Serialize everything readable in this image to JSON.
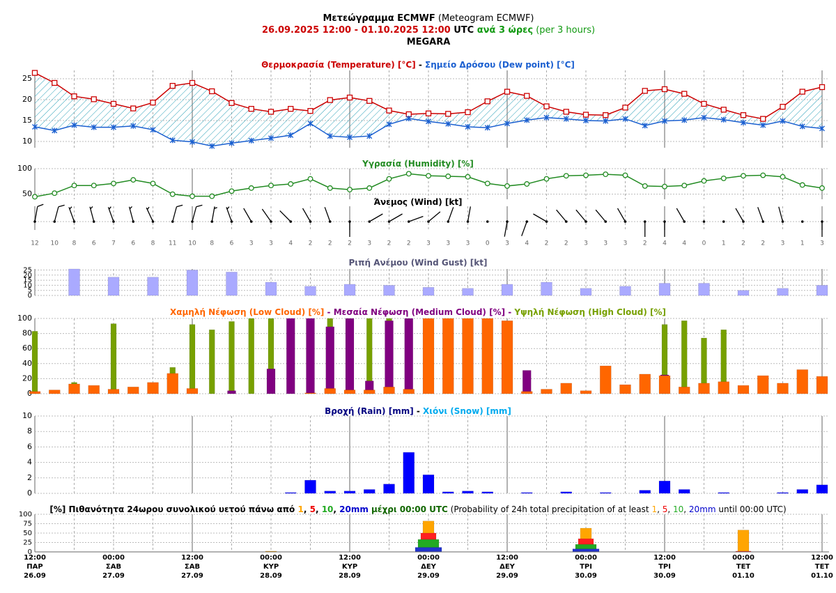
{
  "title_lines": [
    [
      {
        "text": "Μετεώγραμμα ECMWF",
        "bold": true
      },
      {
        "text": " (Meteogram ECMWF)"
      }
    ],
    [
      {
        "text": "26.09.2025 12:00",
        "bold": true,
        "color": "#cc0000"
      },
      {
        "text": " - ",
        "bold": true,
        "color": "#cc0000"
      },
      {
        "text": "01.10.2025 12:00",
        "bold": true,
        "color": "#cc0000"
      },
      {
        "text": " UTC",
        "bold": true
      },
      {
        "text": " ανά 3 ώρες",
        "bold": true,
        "color": "#119911"
      },
      {
        "text": " (per 3 hours)",
        "color": "#119911"
      }
    ],
    [
      {
        "text": "MEGARA",
        "bold": true
      }
    ]
  ],
  "x_labels": [
    {
      "time": "12:00",
      "day": "ΠΑΡ",
      "date": "26.09"
    },
    {
      "time": "00:00",
      "day": "ΣΑΒ",
      "date": "27.09"
    },
    {
      "time": "12:00",
      "day": "ΣΑΒ",
      "date": "27.09"
    },
    {
      "time": "00:00",
      "day": "ΚΥΡ",
      "date": "28.09"
    },
    {
      "time": "12:00",
      "day": "ΚΥΡ",
      "date": "28.09"
    },
    {
      "time": "00:00",
      "day": "ΔΕΥ",
      "date": "29.09"
    },
    {
      "time": "12:00",
      "day": "ΔΕΥ",
      "date": "29.09"
    },
    {
      "time": "00:00",
      "day": "ΤΡΙ",
      "date": "30.09"
    },
    {
      "time": "12:00",
      "day": "ΤΡΙ",
      "date": "30.09"
    },
    {
      "time": "00:00",
      "day": "ΤΕΤ",
      "date": "01.10"
    },
    {
      "time": "12:00",
      "day": "ΤΕΤ",
      "date": "01.10"
    }
  ],
  "chart_data": [
    {
      "type": "line",
      "title_parts": [
        {
          "text": "Θερμοκρασία (Temperature) [°C]",
          "bold": true,
          "color": "#cc0000"
        },
        {
          "text": " - ",
          "bold": true
        },
        {
          "text": "Σημείο Δρόσου (Dew point) [°C]",
          "bold": true,
          "color": "#1a5fd0"
        }
      ],
      "ylim": [
        8.5,
        27
      ],
      "yticks": [
        10,
        15,
        20,
        25
      ],
      "fill_between": true,
      "fill_color": "#2aa0b8",
      "series": [
        {
          "color": "#cc0000",
          "marker": "square",
          "values": [
            26.4,
            24.0,
            20.8,
            20.1,
            19.0,
            17.9,
            19.3,
            23.3,
            24.0,
            22.0,
            19.2,
            17.8,
            17.1,
            17.8,
            17.3,
            19.9,
            20.5,
            19.7,
            17.4,
            16.5,
            16.7,
            16.6,
            17.0,
            19.6,
            21.9,
            20.9,
            18.4,
            17.1,
            16.4,
            16.3,
            18.1,
            22.1,
            22.5,
            21.4,
            19.0,
            17.6,
            16.3,
            15.4,
            18.3,
            21.9,
            23.0
          ]
        },
        {
          "color": "#1a5fd0",
          "marker": "asterisk",
          "values": [
            13.5,
            12.6,
            13.9,
            13.4,
            13.4,
            13.7,
            12.8,
            10.3,
            9.9,
            8.9,
            9.6,
            10.2,
            10.8,
            11.5,
            14.3,
            11.3,
            11.0,
            11.3,
            14.1,
            15.5,
            14.8,
            14.2,
            13.5,
            13.3,
            14.3,
            15.1,
            15.7,
            15.4,
            15.0,
            14.9,
            15.4,
            13.8,
            14.9,
            15.1,
            15.7,
            15.2,
            14.5,
            13.9,
            14.9,
            13.6,
            13.1
          ]
        }
      ]
    },
    {
      "type": "line",
      "title_parts": [
        {
          "text": "Υγρασία (Humidity) [%]",
          "bold": true,
          "color": "#228b22"
        }
      ],
      "ylim": [
        40,
        100
      ],
      "yticks": [
        50,
        100
      ],
      "series": [
        {
          "color": "#228b22",
          "marker": "circle",
          "values": [
            45,
            52,
            67,
            67,
            71,
            78,
            71,
            50,
            46,
            46,
            56,
            62,
            67,
            70,
            80,
            62,
            59,
            62,
            80,
            90,
            86,
            85,
            84,
            71,
            66,
            70,
            80,
            86,
            87,
            89,
            87,
            66,
            65,
            67,
            76,
            81,
            86,
            87,
            84,
            68,
            62
          ]
        }
      ]
    },
    {
      "type": "wind_barb",
      "title_parts": [
        {
          "text": "Άνεμος (Wind) [kt]",
          "bold": true
        }
      ],
      "values": [
        12,
        10,
        8,
        6,
        7,
        6,
        8,
        11,
        10,
        8,
        6,
        3,
        3,
        4,
        2,
        2,
        2,
        3,
        2,
        2,
        3,
        3,
        3,
        0,
        3,
        4,
        2,
        2,
        3,
        3,
        3,
        2,
        4,
        4,
        0,
        1,
        2,
        2,
        3,
        1,
        3
      ],
      "directions": [
        10,
        15,
        340,
        345,
        340,
        345,
        335,
        15,
        15,
        10,
        340,
        330,
        325,
        315,
        330,
        340,
        180,
        60,
        60,
        70,
        50,
        20,
        10,
        null,
        190,
        200,
        300,
        320,
        320,
        320,
        330,
        180,
        180,
        330,
        null,
        340,
        330,
        340,
        345,
        340,
        180
      ]
    },
    {
      "type": "bar",
      "title_parts": [
        {
          "text": "Ριπή Ανέμου (Wind Gust) [kt]",
          "bold": true,
          "color": "#555577"
        }
      ],
      "ylim": [
        0,
        26
      ],
      "yticks": [
        0,
        5,
        10,
        15,
        20,
        25
      ],
      "series": [
        {
          "color": "#aaaaff",
          "values": [
            null,
            null,
            26,
            null,
            18,
            null,
            18,
            null,
            25,
            null,
            23,
            null,
            13,
            null,
            9,
            null,
            11,
            null,
            10,
            null,
            8,
            null,
            7,
            null,
            11,
            null,
            13,
            null,
            7,
            null,
            9,
            null,
            12,
            null,
            12,
            null,
            5,
            null,
            7,
            null,
            10
          ]
        }
      ]
    },
    {
      "type": "bar",
      "title_parts": [
        {
          "text": "Χαμηλή Νέφωση (Low Cloud) [%]",
          "bold": true,
          "color": "#ff6600"
        },
        {
          "text": " - ",
          "bold": true,
          "color": "#800080"
        },
        {
          "text": "Μεσαία Νέφωση (Medium Cloud) [%]",
          "bold": true,
          "color": "#800080"
        },
        {
          "text": " - ",
          "bold": true,
          "color": "#800080"
        },
        {
          "text": "Υψηλή Νέφωση (High Cloud) [%]",
          "bold": true,
          "color": "#77a000"
        }
      ],
      "ylim": [
        0,
        100
      ],
      "yticks": [
        0,
        20,
        40,
        60,
        80,
        100
      ],
      "series": [
        {
          "color": "#ff6600",
          "values": [
            3,
            5,
            13,
            11,
            6,
            9,
            15,
            27,
            7,
            0,
            0,
            0,
            0,
            0,
            1,
            7,
            5,
            5,
            9,
            6,
            100,
            100,
            100,
            100,
            97,
            3,
            6,
            14,
            4,
            37,
            12,
            26,
            24,
            9,
            14,
            16,
            11,
            24,
            14,
            32,
            23
          ]
        },
        {
          "color": "#800080",
          "values": [
            0,
            0,
            0,
            0,
            0,
            0,
            0,
            0,
            0,
            0,
            4,
            0,
            33,
            100,
            100,
            89,
            100,
            17,
            97,
            100,
            0,
            0,
            0,
            0,
            0,
            31,
            0,
            0,
            3,
            0,
            0,
            0,
            25,
            0,
            0,
            0,
            0,
            0,
            0,
            0,
            0
          ]
        },
        {
          "color": "#77a000",
          "values": [
            83,
            0,
            15,
            0,
            93,
            0,
            0,
            35,
            92,
            85,
            96,
            100,
            100,
            0,
            0,
            100,
            0,
            100,
            100,
            0,
            0,
            0,
            0,
            0,
            0,
            0,
            0,
            0,
            0,
            0,
            0,
            0,
            92,
            97,
            74,
            85,
            0,
            0,
            0,
            0,
            0
          ]
        }
      ]
    },
    {
      "type": "bar",
      "title_parts": [
        {
          "text": "Βροχή (Rain) [mm]",
          "bold": true,
          "color": "#000080"
        },
        {
          "text": " - ",
          "bold": true
        },
        {
          "text": "Χιόνι (Snow) [mm]",
          "bold": true,
          "color": "#00aaee"
        }
      ],
      "ylim": [
        0,
        10
      ],
      "yticks": [
        0,
        2,
        4,
        6,
        8,
        10
      ],
      "series": [
        {
          "color": "#0000ff",
          "values": [
            0,
            0,
            0,
            0,
            0,
            0,
            0,
            0,
            0,
            0,
            0,
            0,
            0,
            0.1,
            1.7,
            0.3,
            0.3,
            0.5,
            1.2,
            5.3,
            2.4,
            0.2,
            0.3,
            0.2,
            0,
            0.1,
            0,
            0.2,
            0,
            0.1,
            0,
            0.4,
            1.6,
            0.5,
            0,
            0.1,
            0,
            0,
            0.1,
            0.5,
            1.1
          ]
        }
      ]
    },
    {
      "type": "bar",
      "title_parts": [
        {
          "text": "[%] Πιθανότητα 24ωρου συνολικού υετού πάνω από ",
          "bold": true
        },
        {
          "text": "1",
          "bold": true,
          "color": "#ffa500"
        },
        {
          "text": ", ",
          "bold": true
        },
        {
          "text": "5",
          "bold": true,
          "color": "#ee0000"
        },
        {
          "text": ", ",
          "bold": true
        },
        {
          "text": "10",
          "bold": true,
          "color": "#22aa22"
        },
        {
          "text": ", ",
          "bold": true
        },
        {
          "text": "20mm",
          "bold": true,
          "color": "#0000cc"
        },
        {
          "text": " μέχρι 00:00 UTC",
          "bold": true,
          "color": "#116600"
        },
        {
          "text": " (Probability of 24h total precipitation of at least "
        },
        {
          "text": "1",
          "color": "#ffa500"
        },
        {
          "text": ", "
        },
        {
          "text": "5",
          "color": "#ee0000"
        },
        {
          "text": ", "
        },
        {
          "text": "10",
          "color": "#22aa22"
        },
        {
          "text": ", "
        },
        {
          "text": "20mm",
          "color": "#0000cc"
        },
        {
          "text": " until 00:00 UTC)"
        }
      ],
      "ylim": [
        0,
        100
      ],
      "yticks": [
        0,
        25,
        50,
        75,
        100
      ],
      "series": [
        {
          "color": "#ffa500",
          "values": [
            null,
            null,
            null,
            null,
            null,
            null,
            null,
            null,
            null,
            null,
            null,
            null,
            2,
            null,
            null,
            null,
            null,
            null,
            null,
            null,
            82,
            null,
            null,
            null,
            null,
            null,
            null,
            null,
            63,
            null,
            null,
            null,
            null,
            null,
            null,
            null,
            58,
            null,
            null,
            null,
            null
          ]
        },
        {
          "color": "#ff2020",
          "values": [
            null,
            null,
            null,
            null,
            null,
            null,
            null,
            null,
            null,
            null,
            null,
            null,
            0,
            null,
            null,
            null,
            null,
            null,
            null,
            null,
            50,
            null,
            null,
            null,
            null,
            null,
            null,
            null,
            35,
            null,
            null,
            null,
            null,
            null,
            null,
            null,
            2,
            null,
            null,
            null,
            null
          ]
        },
        {
          "color": "#22aa22",
          "values": [
            null,
            null,
            null,
            null,
            null,
            null,
            null,
            null,
            null,
            null,
            null,
            null,
            0,
            null,
            null,
            null,
            null,
            null,
            null,
            null,
            33,
            null,
            null,
            null,
            null,
            null,
            null,
            null,
            20,
            null,
            null,
            null,
            null,
            null,
            null,
            null,
            0,
            null,
            null,
            null,
            null
          ]
        },
        {
          "color": "#2233cc",
          "values": [
            null,
            null,
            null,
            null,
            null,
            null,
            null,
            null,
            null,
            null,
            null,
            null,
            0,
            null,
            null,
            null,
            null,
            null,
            null,
            null,
            12,
            null,
            null,
            null,
            null,
            null,
            null,
            null,
            8,
            null,
            null,
            null,
            null,
            null,
            null,
            null,
            0,
            null,
            null,
            null,
            null
          ]
        }
      ]
    }
  ]
}
